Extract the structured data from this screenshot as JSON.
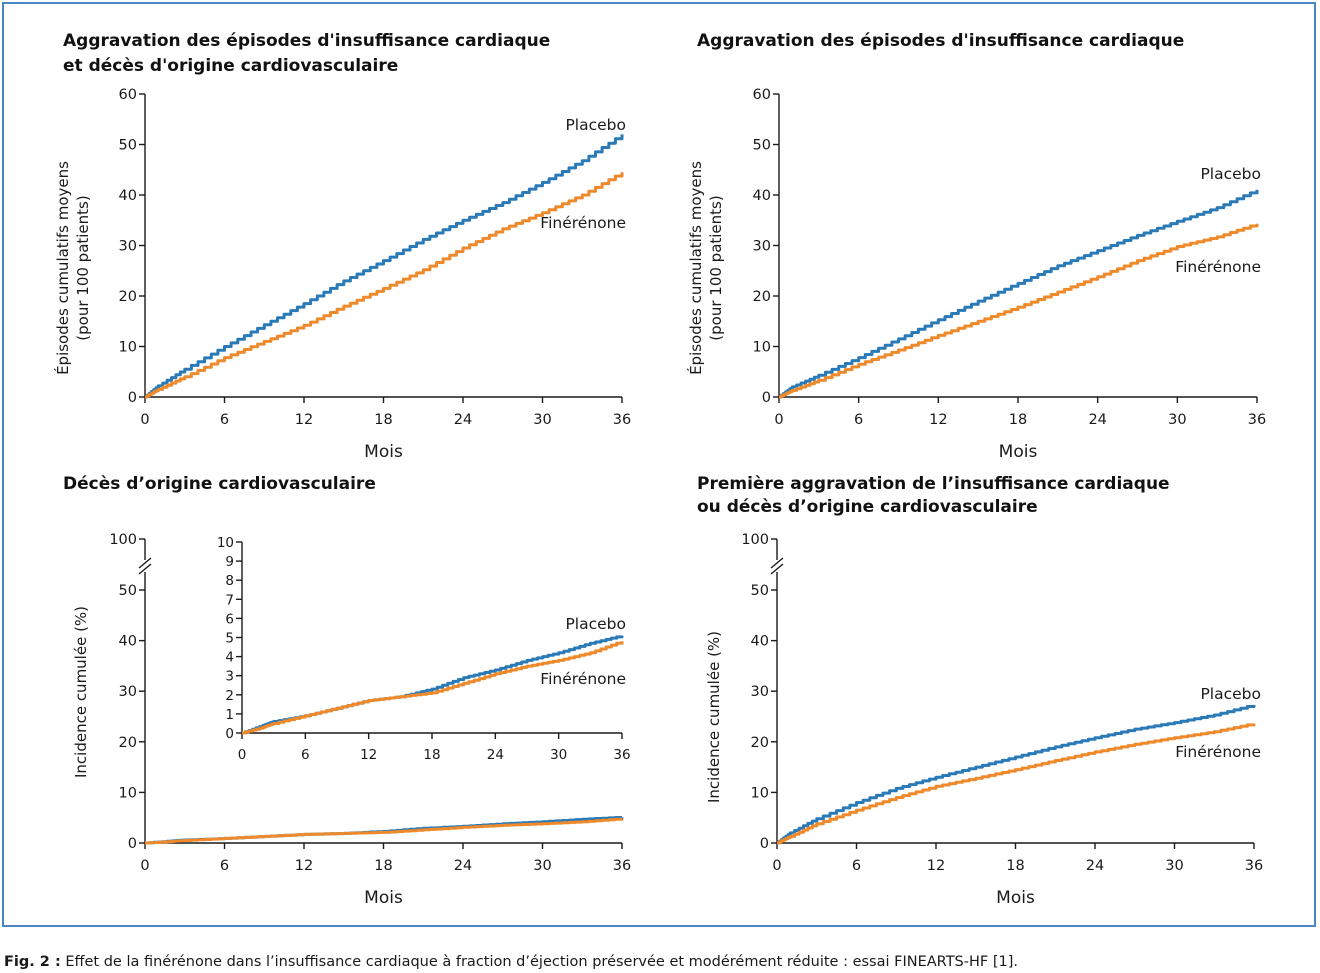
{
  "colors": {
    "placebo": "#2a7ab8",
    "finerenone": "#ee8a2b",
    "frame": "#4a86c2"
  },
  "caption": {
    "label": "Fig. 2 :",
    "text": " Effet de la finérénone dans l’insuffisance cardiaque à fraction d’éjection préservée et modérément réduite : essai FINEARTS-HF [1]."
  },
  "chart_data": [
    {
      "id": "A",
      "type": "line",
      "title": [
        "Aggravation des épisodes d'insuffisance cardiaque",
        "et décès d'origine cardiovasculaire"
      ],
      "ylabel": [
        "Épisodes cumulatifs moyens",
        "(pour 100 patients)"
      ],
      "xlabel": "Mois",
      "xlim": [
        0,
        36
      ],
      "ylim": [
        0,
        60
      ],
      "xticks": [
        0,
        6,
        12,
        18,
        24,
        30,
        36
      ],
      "yticks": [
        0,
        10,
        20,
        30,
        40,
        50,
        60
      ],
      "series": [
        {
          "name": "Placebo",
          "key": "placebo",
          "x": [
            0,
            1,
            3,
            6,
            9,
            12,
            15,
            18,
            21,
            24,
            27,
            30,
            33,
            36
          ],
          "y": [
            0,
            2.2,
            5.5,
            10,
            14.3,
            18.5,
            23,
            27,
            31.2,
            35,
            38.5,
            42.5,
            46.8,
            52
          ]
        },
        {
          "name": "Finérénone",
          "key": "finerenone",
          "x": [
            0,
            1,
            3,
            6,
            9,
            12,
            15,
            18,
            21,
            24,
            27,
            30,
            33,
            36
          ],
          "y": [
            0,
            1.5,
            4,
            7.8,
            11,
            14.2,
            18,
            21.5,
            25.2,
            29.5,
            33.3,
            36.5,
            40,
            44.5
          ]
        }
      ]
    },
    {
      "id": "B",
      "type": "line",
      "title": [
        "Aggravation des épisodes d'insuffisance cardiaque"
      ],
      "ylabel": [
        "Épisodes cumulatifs moyens",
        "(pour 100 patients)"
      ],
      "xlabel": "Mois",
      "xlim": [
        0,
        36
      ],
      "ylim": [
        0,
        60
      ],
      "xticks": [
        0,
        6,
        12,
        18,
        24,
        30,
        36
      ],
      "yticks": [
        0,
        10,
        20,
        30,
        40,
        50,
        60
      ],
      "series": [
        {
          "name": "Placebo",
          "key": "placebo",
          "x": [
            0,
            1,
            3,
            6,
            9,
            12,
            15,
            18,
            21,
            24,
            27,
            30,
            33,
            36
          ],
          "y": [
            0,
            2,
            4.3,
            7.8,
            11.5,
            15.3,
            19,
            22.5,
            26,
            29,
            32,
            34.8,
            37.5,
            41
          ]
        },
        {
          "name": "Finérénone",
          "key": "finerenone",
          "x": [
            0,
            1,
            3,
            6,
            9,
            12,
            15,
            18,
            21,
            24,
            27,
            30,
            33,
            36
          ],
          "y": [
            0,
            1.3,
            3.3,
            6.5,
            9.3,
            12.2,
            15,
            17.8,
            20.8,
            23.8,
            27,
            29.8,
            31.7,
            34.3
          ]
        }
      ]
    },
    {
      "id": "C",
      "type": "line",
      "title": [
        "Décès d’origine cardiovasculaire"
      ],
      "ylabel": [
        "Incidence cumulée (%)"
      ],
      "xlabel": "Mois",
      "xlim": [
        0,
        36
      ],
      "ylim": [
        0,
        50
      ],
      "xticks": [
        0,
        6,
        12,
        18,
        24,
        30,
        36
      ],
      "yticks": [
        0,
        10,
        20,
        30,
        40,
        50
      ],
      "ybreak_top": 100,
      "series": [
        {
          "name": "Placebo",
          "key": "placebo",
          "x": [
            0,
            2,
            3,
            6,
            9,
            12,
            15,
            18,
            21,
            24,
            27,
            30,
            33,
            36
          ],
          "y": [
            0,
            0.4,
            0.6,
            0.9,
            1.3,
            1.7,
            1.9,
            2.3,
            2.9,
            3.3,
            3.8,
            4.2,
            4.7,
            5.1
          ]
        },
        {
          "name": "Finérénone",
          "key": "finerenone",
          "x": [
            0,
            2,
            3,
            6,
            9,
            12,
            15,
            18,
            21,
            24,
            27,
            30,
            33,
            36
          ],
          "y": [
            0,
            0.3,
            0.5,
            0.9,
            1.3,
            1.7,
            1.9,
            2.1,
            2.6,
            3.1,
            3.5,
            3.8,
            4.2,
            4.8
          ]
        }
      ],
      "inset": {
        "xlim": [
          0,
          36
        ],
        "ylim": [
          0,
          10
        ],
        "xticks": [
          0,
          6,
          12,
          18,
          24,
          30,
          36
        ],
        "yticks": [
          0,
          1,
          2,
          3,
          4,
          5,
          6,
          7,
          8,
          9,
          10
        ]
      }
    },
    {
      "id": "D",
      "type": "line",
      "title": [
        "Première aggravation de l’insuffisance cardiaque",
        "ou décès d’origine cardiovasculaire"
      ],
      "ylabel": [
        "Incidence cumulée (%)"
      ],
      "xlabel": "Mois",
      "xlim": [
        0,
        36
      ],
      "ylim": [
        0,
        50
      ],
      "xticks": [
        0,
        6,
        12,
        18,
        24,
        30,
        36
      ],
      "yticks": [
        0,
        10,
        20,
        30,
        40,
        50
      ],
      "ybreak_top": 100,
      "series": [
        {
          "name": "Placebo",
          "key": "placebo",
          "x": [
            0,
            1,
            3,
            6,
            9,
            12,
            15,
            18,
            21,
            24,
            27,
            30,
            33,
            36
          ],
          "y": [
            0,
            2,
            4.8,
            8,
            10.8,
            13,
            15,
            17,
            19,
            20.8,
            22.5,
            23.8,
            25.3,
            27.3
          ]
        },
        {
          "name": "Finérénone",
          "key": "finerenone",
          "x": [
            0,
            1,
            3,
            6,
            9,
            12,
            15,
            18,
            21,
            24,
            27,
            30,
            33,
            36
          ],
          "y": [
            0,
            1.3,
            3.8,
            6.5,
            9,
            11.2,
            12.8,
            14.5,
            16.3,
            18,
            19.5,
            20.8,
            22,
            23.6
          ]
        }
      ]
    }
  ]
}
